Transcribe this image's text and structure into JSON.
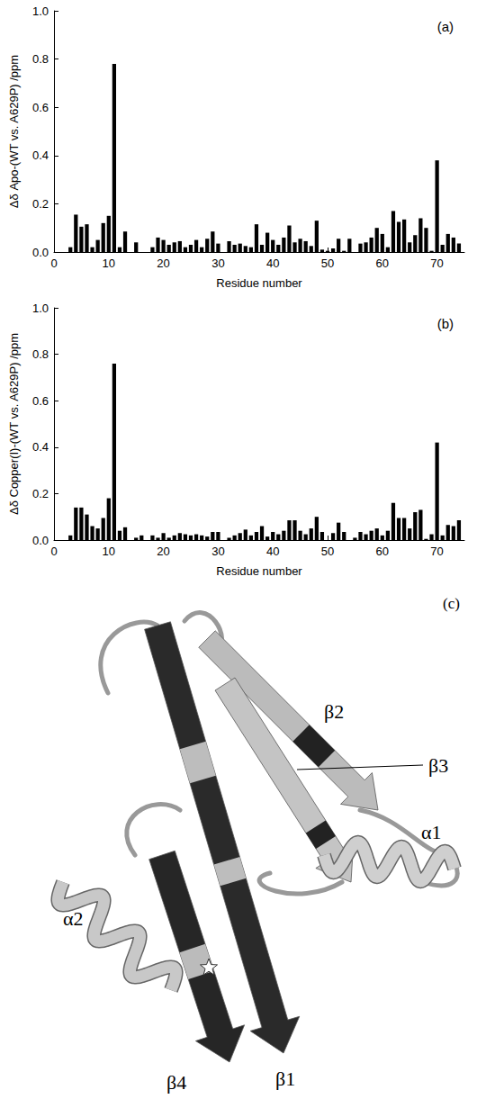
{
  "chart_data": [
    {
      "type": "bar",
      "annotation": "(a)",
      "y_label": "Δδ Apo-(WT vs. A629P) /ppm",
      "x_label": "Residue number",
      "color": "#000000",
      "x": [
        3,
        4,
        5,
        6,
        7,
        8,
        9,
        10,
        11,
        12,
        13,
        15,
        18,
        19,
        20,
        21,
        22,
        23,
        24,
        25,
        26,
        27,
        28,
        29,
        30,
        32,
        33,
        34,
        35,
        36,
        37,
        38,
        39,
        40,
        41,
        42,
        43,
        44,
        45,
        46,
        47,
        48,
        49,
        50,
        51,
        52,
        53,
        54,
        56,
        57,
        58,
        59,
        60,
        61,
        62,
        63,
        64,
        65,
        66,
        67,
        68,
        69,
        70,
        71,
        72,
        73,
        74
      ],
      "values": [
        0.02,
        0.155,
        0.105,
        0.115,
        0.02,
        0.05,
        0.12,
        0.15,
        0.78,
        0.02,
        0.085,
        0.04,
        0.02,
        0.06,
        0.05,
        0.03,
        0.04,
        0.045,
        0.02,
        0.03,
        0.05,
        0.02,
        0.055,
        0.085,
        0.035,
        0.045,
        0.03,
        0.035,
        0.025,
        0.02,
        0.115,
        0.03,
        0.08,
        0.05,
        0.03,
        0.06,
        0.11,
        0.04,
        0.055,
        0.045,
        0.025,
        0.13,
        0.01,
        0.005,
        0.015,
        0.055,
        0.005,
        0.055,
        0.035,
        0.04,
        0.06,
        0.1,
        0.075,
        0.02,
        0.17,
        0.125,
        0.135,
        0.04,
        0.07,
        0.14,
        0.1,
        0.005,
        0.38,
        0.03,
        0.075,
        0.06,
        0.035
      ],
      "xlim": [
        0,
        75
      ],
      "xticks": [
        0,
        10,
        20,
        30,
        40,
        50,
        60,
        70
      ],
      "ylim": [
        0,
        1
      ],
      "yticks": [
        {
          "value": 0,
          "label": "0.0"
        },
        0.2,
        0.4,
        0.6,
        0.8,
        {
          "value": 1,
          "label": "1.0"
        }
      ]
    },
    {
      "type": "bar",
      "annotation": "(b)",
      "y_label": "Δδ Copper(I)-(WT vs. A629P) /ppm",
      "x_label": "Residue number",
      "color": "#000000",
      "x": [
        3,
        4,
        5,
        6,
        7,
        8,
        9,
        10,
        11,
        12,
        13,
        15,
        16,
        18,
        19,
        20,
        21,
        22,
        23,
        24,
        25,
        26,
        27,
        28,
        29,
        30,
        32,
        33,
        34,
        35,
        36,
        37,
        38,
        39,
        40,
        41,
        42,
        43,
        44,
        45,
        46,
        47,
        48,
        49,
        51,
        52,
        53,
        55,
        56,
        57,
        58,
        59,
        60,
        61,
        62,
        63,
        64,
        65,
        66,
        67,
        68,
        69,
        70,
        71,
        72,
        73,
        74
      ],
      "values": [
        0.02,
        0.14,
        0.14,
        0.11,
        0.06,
        0.05,
        0.095,
        0.18,
        0.76,
        0.04,
        0.055,
        0.01,
        0.02,
        0.02,
        0.01,
        0.03,
        0.01,
        0.02,
        0.03,
        0.025,
        0.02,
        0.025,
        0.02,
        0.015,
        0.035,
        0.035,
        0.01,
        0.02,
        0.03,
        0.045,
        0.02,
        0.035,
        0.06,
        0.015,
        0.035,
        0.025,
        0.04,
        0.085,
        0.085,
        0.04,
        0.025,
        0.05,
        0.1,
        0.035,
        0.03,
        0.075,
        0.035,
        0.01,
        0.035,
        0.025,
        0.04,
        0.05,
        0.02,
        0.04,
        0.16,
        0.095,
        0.095,
        0.05,
        0.12,
        0.13,
        0.005,
        0.025,
        0.42,
        0.02,
        0.065,
        0.06,
        0.085
      ],
      "xlim": [
        0,
        75
      ],
      "xticks": [
        0,
        10,
        20,
        30,
        40,
        50,
        60,
        70
      ],
      "ylim": [
        0,
        1
      ],
      "yticks": [
        {
          "value": 0,
          "label": "0.0"
        },
        0.2,
        0.4,
        0.6,
        0.8,
        {
          "value": 1,
          "label": "1.0"
        }
      ]
    }
  ],
  "structure": {
    "panel": "(c)",
    "labels": [
      "β2",
      "β3",
      "α1",
      "α2",
      "β4",
      "β1"
    ]
  }
}
